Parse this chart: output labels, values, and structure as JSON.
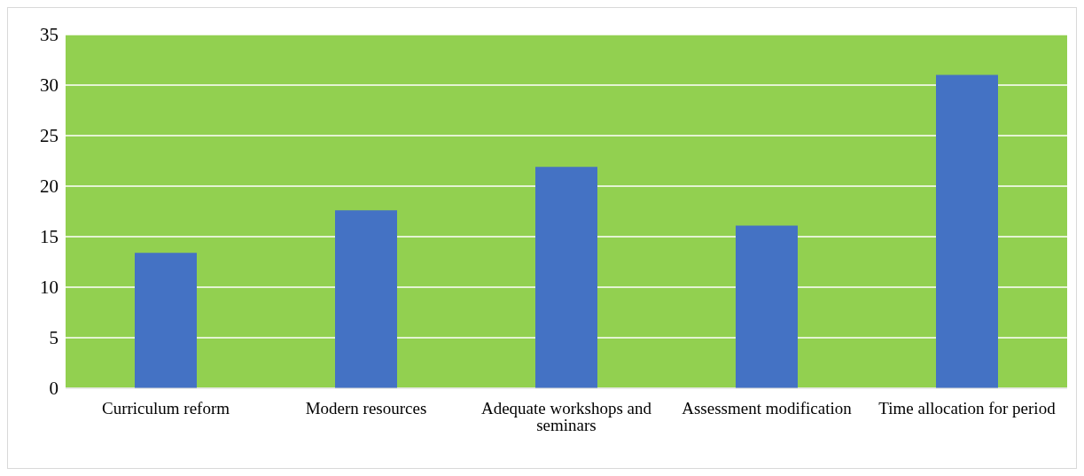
{
  "chart_data": {
    "type": "bar",
    "categories": [
      "Curriculum reform",
      "Modern resources",
      "Adequate workshops and seminars",
      "Assessment modification",
      "Time allocation for period"
    ],
    "values": [
      13.4,
      17.6,
      21.9,
      16.1,
      31.0
    ],
    "color": "#4472c4",
    "ylim": [
      0,
      35
    ],
    "yticks": [
      0,
      5,
      10,
      15,
      20,
      25,
      30,
      35
    ],
    "grid": "y"
  }
}
